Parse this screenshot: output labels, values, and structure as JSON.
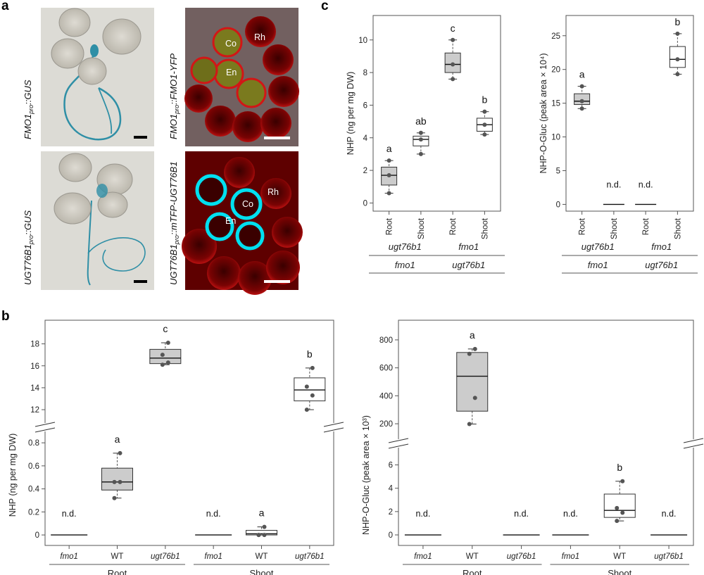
{
  "panel_labels": {
    "a": "a",
    "b": "b",
    "c": "c"
  },
  "panel_a": {
    "photo_labels": [
      {
        "prefix": "FMO1",
        "sub": "pro",
        "suffix": "::GUS"
      },
      {
        "prefix": "UGT76B1",
        "sub": "pro",
        "suffix": "::GUS"
      },
      {
        "prefix": "FMO1",
        "sub": "pro",
        "suffix": "::FMO1-YFP"
      },
      {
        "prefix": "UGT76B1",
        "sub": "pro",
        "suffix": "::mTFP-UGT76B1"
      }
    ],
    "tissue_labels": {
      "co": "Co",
      "rh": "Rh",
      "en": "En"
    },
    "colors": {
      "gus_blue": "#2f8fa6",
      "autofluor_red": "#c01010",
      "yfp": "#8a8a1c",
      "tfp": "#00e0f0"
    }
  },
  "chart_data": [
    {
      "id": "c-left",
      "type": "box",
      "ylabel": "NHP (ng per mg DW)",
      "ylim": [
        -0.5,
        11.5
      ],
      "yticks": [
        0,
        2,
        4,
        6,
        8,
        10
      ],
      "categories": [
        "Root",
        "Shoot",
        "Root",
        "Shoot"
      ],
      "groups": [
        {
          "top": "ugt76b1",
          "bottom": "fmo1"
        },
        {
          "top": "fmo1",
          "bottom": "ugt76b1"
        }
      ],
      "boxes": [
        {
          "min": 0.6,
          "q1": 1.1,
          "median": 1.7,
          "q3": 2.2,
          "max": 2.6,
          "points": [
            0.6,
            1.7,
            2.6
          ],
          "label": "a",
          "fill": "#cccccc"
        },
        {
          "min": 3.0,
          "q1": 3.5,
          "median": 3.9,
          "q3": 4.1,
          "max": 4.3,
          "points": [
            3.0,
            3.9,
            4.3
          ],
          "label": "ab",
          "fill": "#ffffff"
        },
        {
          "min": 7.6,
          "q1": 8.0,
          "median": 8.5,
          "q3": 9.2,
          "max": 10.0,
          "points": [
            7.6,
            8.5,
            10.0
          ],
          "label": "c",
          "fill": "#cccccc"
        },
        {
          "min": 4.2,
          "q1": 4.4,
          "median": 4.8,
          "q3": 5.2,
          "max": 5.6,
          "points": [
            4.2,
            4.8,
            5.6
          ],
          "label": "b",
          "fill": "#ffffff"
        }
      ]
    },
    {
      "id": "c-right",
      "type": "box",
      "ylabel": "NHP-O-Gluc (peak area × 10⁴)",
      "ylim": [
        -1,
        28
      ],
      "yticks": [
        0,
        5,
        10,
        15,
        20,
        25
      ],
      "categories": [
        "Root",
        "Shoot",
        "Root",
        "Shoot"
      ],
      "groups": [
        {
          "top": "ugt76b1",
          "bottom": "fmo1"
        },
        {
          "top": "fmo1",
          "bottom": "ugt76b1"
        }
      ],
      "boxes": [
        {
          "min": 14.2,
          "q1": 14.8,
          "median": 15.3,
          "q3": 16.4,
          "max": 17.5,
          "points": [
            14.2,
            15.3,
            17.5
          ],
          "label": "a",
          "fill": "#cccccc"
        },
        {
          "nd": true,
          "label": "n.d."
        },
        {
          "nd": true,
          "label": "n.d."
        },
        {
          "min": 19.3,
          "q1": 20.3,
          "median": 21.5,
          "q3": 23.4,
          "max": 25.3,
          "points": [
            19.3,
            21.5,
            25.3
          ],
          "label": "b",
          "fill": "#ffffff"
        }
      ]
    },
    {
      "id": "b-left",
      "type": "box-broken-axis",
      "ylabel": "NHP (ng per mg DW)",
      "lower_yticks": [
        0,
        0.2,
        0.4,
        0.6,
        0.8
      ],
      "upper_yticks": [
        12,
        14,
        16,
        18
      ],
      "lower_ylim": [
        -0.03,
        0.85
      ],
      "upper_ylim": [
        11.3,
        19
      ],
      "categories": [
        "fmo1",
        "WT",
        "ugt76b1",
        "fmo1",
        "WT",
        "ugt76b1"
      ],
      "groups": [
        "Root",
        "Shoot"
      ],
      "boxes": [
        {
          "nd": true,
          "label": "n.d."
        },
        {
          "segment": "lower",
          "min": 0.32,
          "q1": 0.39,
          "median": 0.46,
          "q3": 0.58,
          "max": 0.71,
          "points": [
            0.32,
            0.46,
            0.46,
            0.71
          ],
          "label": "a",
          "fill": "#cccccc"
        },
        {
          "segment": "upper",
          "min": 16.1,
          "q1": 16.2,
          "median": 16.7,
          "q3": 17.5,
          "max": 18.1,
          "points": [
            16.1,
            16.3,
            17.0,
            18.1
          ],
          "label": "c",
          "fill": "#cccccc"
        },
        {
          "nd": true,
          "label": "n.d."
        },
        {
          "segment": "lower",
          "min": 0.0,
          "q1": 0.0,
          "median": 0.01,
          "q3": 0.04,
          "max": 0.07,
          "points": [
            0.0,
            0.0,
            0.0,
            0.07
          ],
          "label": "a",
          "fill": "#ffffff"
        },
        {
          "segment": "upper",
          "min": 12.0,
          "q1": 12.8,
          "median": 13.8,
          "q3": 14.9,
          "max": 15.8,
          "points": [
            12.0,
            13.3,
            14.1,
            15.8
          ],
          "label": "b",
          "fill": "#ffffff"
        }
      ]
    },
    {
      "id": "b-right",
      "type": "box-broken-axis",
      "ylabel": "NHP-O-Gluc (peak area × 10³)",
      "lower_yticks": [
        0,
        2,
        4,
        6
      ],
      "upper_yticks": [
        200,
        400,
        600,
        800
      ],
      "lower_ylim": [
        -0.3,
        7
      ],
      "upper_ylim": [
        130,
        850
      ],
      "categories": [
        "fmo1",
        "WT",
        "ugt76b1",
        "fmo1",
        "WT",
        "ugt76b1"
      ],
      "groups": [
        "Root",
        "Shoot"
      ],
      "boxes": [
        {
          "nd": true,
          "label": "n.d."
        },
        {
          "segment": "upper",
          "min": 198,
          "q1": 290,
          "median": 540,
          "q3": 710,
          "max": 735,
          "points": [
            198,
            385,
            700,
            735
          ],
          "label": "a",
          "fill": "#cccccc"
        },
        {
          "nd": true,
          "label": "n.d."
        },
        {
          "nd": true,
          "label": "n.d."
        },
        {
          "segment": "lower",
          "min": 1.2,
          "q1": 1.5,
          "median": 2.1,
          "q3": 3.5,
          "max": 4.6,
          "points": [
            1.2,
            1.9,
            2.3,
            4.6
          ],
          "label": "b",
          "fill": "#ffffff"
        },
        {
          "nd": true,
          "label": "n.d."
        }
      ]
    }
  ]
}
